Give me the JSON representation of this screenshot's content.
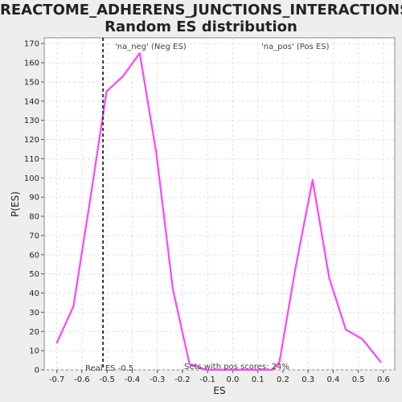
{
  "chart_data": {
    "type": "line",
    "title": "REACTOME_ADHERENS_JUNCTIONS_INTERACTIONS:",
    "subtitle": "Random ES distribution",
    "xlabel": "ES",
    "ylabel": "P(ES)",
    "xlim": [
      -0.75,
      0.645
    ],
    "ylim": [
      0,
      173
    ],
    "grid": true,
    "x_ticks": [
      -0.7,
      -0.6,
      -0.5,
      -0.4,
      -0.3,
      -0.2,
      -0.1,
      0.0,
      0.1,
      0.2,
      0.3,
      0.4,
      0.5,
      0.6
    ],
    "x_tick_labels": [
      "-0.7",
      "-0.6",
      "-0.5",
      "-0.4",
      "-0.3",
      "-0.2",
      "-0.1",
      "0.0",
      "0.1",
      "0.2",
      "0.3",
      "0.4",
      "0.5",
      "0.6"
    ],
    "y_ticks": [
      0,
      10,
      20,
      30,
      40,
      50,
      60,
      70,
      80,
      90,
      100,
      110,
      120,
      130,
      140,
      150,
      160,
      170
    ],
    "series": [
      {
        "color": "#ff44ff",
        "x": [
          -0.7,
          -0.634,
          -0.568,
          -0.502,
          -0.436,
          -0.37,
          -0.304,
          -0.238,
          -0.172,
          -0.106,
          -0.04,
          0.026,
          0.092,
          0.158,
          0.186,
          0.25,
          0.318,
          0.384,
          0.45,
          0.516,
          0.59
        ],
        "y": [
          14,
          33,
          88,
          145,
          153,
          165,
          113,
          42,
          3,
          0,
          0,
          0,
          0,
          0,
          4,
          53,
          99,
          48,
          21,
          16,
          4
        ]
      }
    ],
    "real_es": {
      "x": -0.516,
      "label": "Real ES -0.5"
    },
    "annotations": {
      "neg_label": "'na_neg' (Neg ES)",
      "pos_label": "'na_pos' (Pos ES)",
      "pos_scores": "Sets with pos scores: 24%"
    },
    "colors": {
      "neg": "#4444cc",
      "pos": "#dd4444",
      "line": "#ff44ff"
    }
  }
}
